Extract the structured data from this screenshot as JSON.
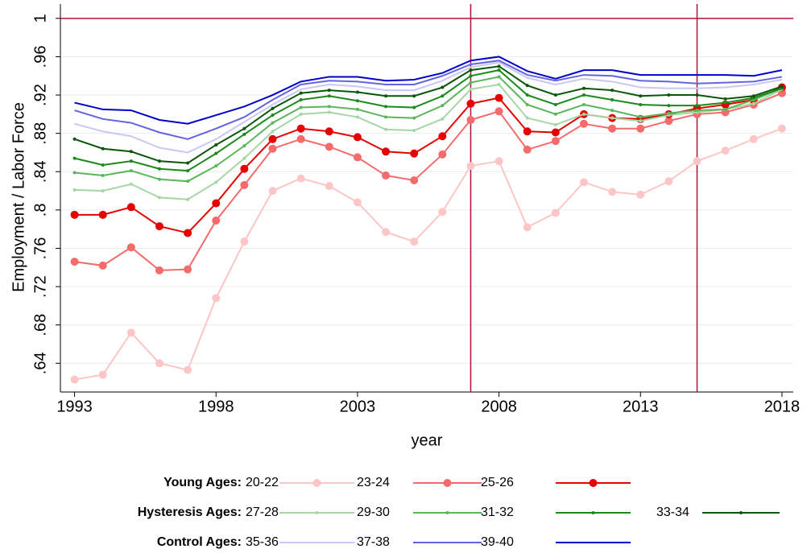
{
  "chart_data": {
    "type": "line",
    "x_label": "year",
    "y_label": "Employment / Labor Force",
    "x": [
      1993,
      1994,
      1995,
      1996,
      1997,
      1998,
      1999,
      2000,
      2001,
      2002,
      2003,
      2004,
      2005,
      2006,
      2007,
      2008,
      2009,
      2010,
      2011,
      2012,
      2013,
      2014,
      2015,
      2016,
      2017,
      2018
    ],
    "xlim": [
      1992.5,
      2018.4
    ],
    "xticks": [
      1993,
      1998,
      2003,
      2008,
      2013,
      2018
    ],
    "ylim": [
      0.61,
      1.015
    ],
    "yticks": [
      {
        "value": 0.64,
        "label": ".64"
      },
      {
        "value": 0.68,
        "label": ".68"
      },
      {
        "value": 0.72,
        "label": ".72"
      },
      {
        "value": 0.76,
        "label": ".76"
      },
      {
        "value": 0.8,
        "label": ".8"
      },
      {
        "value": 0.84,
        "label": ".84"
      },
      {
        "value": 0.88,
        "label": ".88"
      },
      {
        "value": 0.92,
        "label": ".92"
      },
      {
        "value": 0.96,
        "label": ".96"
      },
      1
    ],
    "grid": true,
    "reference_lines": {
      "y": [
        1
      ],
      "x": [
        2007,
        2015
      ],
      "color": "#b0103a"
    },
    "groups": [
      {
        "name": "Young Ages:",
        "series": [
          {
            "name": "20-22",
            "color": "#fcc6c6",
            "values": [
              0.623,
              0.628,
              0.672,
              0.64,
              0.633,
              0.708,
              0.767,
              0.82,
              0.833,
              0.825,
              0.808,
              0.777,
              0.767,
              0.798,
              0.846,
              0.851,
              0.782,
              0.797,
              0.829,
              0.819,
              0.816,
              0.83,
              0.851,
              0.862,
              0.874,
              0.885
            ]
          },
          {
            "name": "23-24",
            "color": "#f56b6b",
            "values": [
              0.746,
              0.742,
              0.761,
              0.737,
              0.738,
              0.789,
              0.826,
              0.864,
              0.874,
              0.866,
              0.855,
              0.836,
              0.831,
              0.858,
              0.894,
              0.903,
              0.863,
              0.872,
              0.89,
              0.885,
              0.885,
              0.893,
              0.9,
              0.902,
              0.91,
              0.922
            ]
          },
          {
            "name": "25-26",
            "color": "#e60000",
            "values": [
              0.795,
              0.795,
              0.803,
              0.783,
              0.776,
              0.807,
              0.843,
              0.874,
              0.885,
              0.882,
              0.876,
              0.861,
              0.859,
              0.877,
              0.911,
              0.917,
              0.882,
              0.881,
              0.9,
              0.896,
              0.895,
              0.9,
              0.906,
              0.91,
              0.915,
              0.928
            ]
          }
        ]
      },
      {
        "name": "Hysteresis Ages:",
        "series": [
          {
            "name": "27-28",
            "color": "#a6d6a6",
            "values": [
              0.821,
              0.82,
              0.827,
              0.813,
              0.811,
              0.829,
              0.854,
              0.882,
              0.9,
              0.902,
              0.897,
              0.884,
              0.883,
              0.895,
              0.926,
              0.931,
              0.896,
              0.889,
              0.9,
              0.896,
              0.893,
              0.899,
              0.902,
              0.905,
              0.911,
              0.926
            ]
          },
          {
            "name": "29-30",
            "color": "#5cb65c",
            "values": [
              0.839,
              0.836,
              0.841,
              0.832,
              0.83,
              0.846,
              0.867,
              0.891,
              0.907,
              0.908,
              0.905,
              0.897,
              0.896,
              0.909,
              0.933,
              0.939,
              0.91,
              0.9,
              0.91,
              0.904,
              0.897,
              0.901,
              0.904,
              0.905,
              0.915,
              0.927
            ]
          },
          {
            "name": "31-32",
            "color": "#1a8a1a",
            "values": [
              0.854,
              0.847,
              0.851,
              0.843,
              0.841,
              0.859,
              0.879,
              0.899,
              0.915,
              0.919,
              0.914,
              0.908,
              0.907,
              0.919,
              0.94,
              0.946,
              0.92,
              0.91,
              0.92,
              0.915,
              0.91,
              0.909,
              0.909,
              0.912,
              0.917,
              0.927
            ]
          },
          {
            "name": "33-34",
            "color": "#0a560a",
            "values": [
              0.874,
              0.864,
              0.861,
              0.851,
              0.849,
              0.868,
              0.885,
              0.906,
              0.922,
              0.925,
              0.923,
              0.919,
              0.919,
              0.928,
              0.946,
              0.95,
              0.93,
              0.92,
              0.927,
              0.925,
              0.919,
              0.92,
              0.92,
              0.916,
              0.919,
              0.929
            ]
          }
        ]
      },
      {
        "name": "Control Ages:",
        "series": [
          {
            "name": "35-36",
            "color": "#c8c8f2",
            "values": [
              0.89,
              0.882,
              0.877,
              0.865,
              0.86,
              0.874,
              0.892,
              0.91,
              0.926,
              0.931,
              0.929,
              0.925,
              0.925,
              0.935,
              0.949,
              0.954,
              0.938,
              0.931,
              0.937,
              0.934,
              0.928,
              0.927,
              0.927,
              0.928,
              0.931,
              0.936
            ]
          },
          {
            "name": "37-38",
            "color": "#6464e0",
            "values": [
              0.904,
              0.895,
              0.891,
              0.881,
              0.874,
              0.885,
              0.897,
              0.915,
              0.931,
              0.935,
              0.934,
              0.931,
              0.931,
              0.94,
              0.952,
              0.956,
              0.941,
              0.935,
              0.941,
              0.94,
              0.935,
              0.934,
              0.932,
              0.933,
              0.934,
              0.939
            ]
          },
          {
            "name": "39-40",
            "color": "#0000c8",
            "values": [
              0.912,
              0.905,
              0.904,
              0.894,
              0.89,
              0.899,
              0.908,
              0.92,
              0.934,
              0.939,
              0.939,
              0.935,
              0.936,
              0.943,
              0.956,
              0.96,
              0.945,
              0.937,
              0.946,
              0.946,
              0.941,
              0.941,
              0.941,
              0.941,
              0.94,
              0.946
            ]
          }
        ]
      }
    ]
  }
}
